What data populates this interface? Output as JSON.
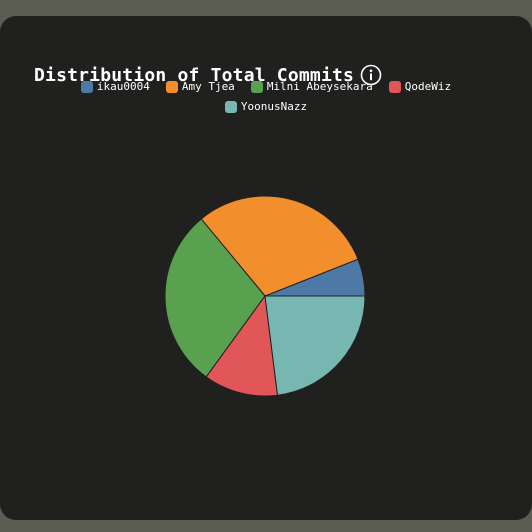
{
  "chart_data": {
    "type": "pie",
    "title": "Distribution of Total Commits",
    "legend_position": "top",
    "categories": [
      "ikau0004",
      "Amy Tjea",
      "Milni Abeysekara",
      "QodeWiz",
      "YoonusNazz"
    ],
    "values": [
      6,
      30,
      29,
      12,
      23
    ],
    "colors": [
      "#4e79a7",
      "#f28e2b",
      "#59a14f",
      "#e15759",
      "#76b7b2"
    ]
  },
  "icons": {
    "info": "info-circle-icon"
  }
}
